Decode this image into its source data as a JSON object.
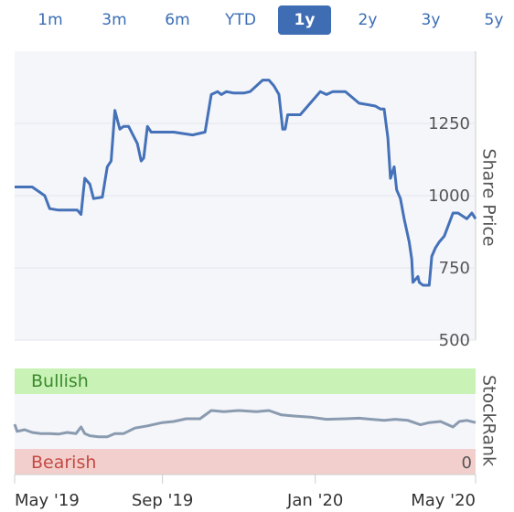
{
  "range_tabs": [
    {
      "label": "1m",
      "active": false
    },
    {
      "label": "3m",
      "active": false
    },
    {
      "label": "6m",
      "active": false
    },
    {
      "label": "YTD",
      "active": false
    },
    {
      "label": "1y",
      "active": true
    },
    {
      "label": "2y",
      "active": false
    },
    {
      "label": "3y",
      "active": false
    },
    {
      "label": "5y",
      "active": false
    }
  ],
  "colors": {
    "accent": "#3f6db4",
    "line": "#4471b8",
    "bullish_zone": "#c9f2b6",
    "bearish_zone": "#f2cfcc",
    "bullish_text": "#3a8a2c",
    "bearish_text": "#c44a44",
    "stockrank_line": "#8a9bb0"
  },
  "chart_data": [
    {
      "type": "line",
      "title": "",
      "ylabel": "Share Price",
      "ylim": [
        500,
        1500
      ],
      "yticks": [
        500,
        750,
        1000,
        1250
      ],
      "x_tick_labels": [
        "May '19",
        "Sep '19",
        "Jan '20",
        "May '20"
      ],
      "grid": true,
      "series": [
        {
          "x": [
            "2019-05-06",
            "2019-05-20",
            "2019-05-30",
            "2019-06-03",
            "2019-06-10",
            "2019-06-25",
            "2019-06-28",
            "2019-07-01",
            "2019-07-05",
            "2019-07-08",
            "2019-07-15",
            "2019-07-19",
            "2019-07-22",
            "2019-07-25",
            "2019-07-29",
            "2019-08-01",
            "2019-08-05",
            "2019-08-12",
            "2019-08-15",
            "2019-08-17",
            "2019-08-20",
            "2019-08-23",
            "2019-08-27",
            "2019-09-01",
            "2019-09-10",
            "2019-09-25",
            "2019-10-05",
            "2019-10-10",
            "2019-10-15",
            "2019-10-18",
            "2019-10-22",
            "2019-10-28",
            "2019-11-01",
            "2019-11-05",
            "2019-11-10",
            "2019-11-20",
            "2019-11-25",
            "2019-11-29",
            "2019-12-03",
            "2019-12-06",
            "2019-12-08",
            "2019-12-10",
            "2019-12-16",
            "2019-12-20",
            "2019-12-28",
            "2020-01-05",
            "2020-01-10",
            "2020-01-15",
            "2020-01-25",
            "2020-02-05",
            "2020-02-12",
            "2020-02-18",
            "2020-02-22",
            "2020-02-25",
            "2020-02-28",
            "2020-03-01",
            "2020-03-04",
            "2020-03-06",
            "2020-03-09",
            "2020-03-12",
            "2020-03-16",
            "2020-03-18",
            "2020-03-19",
            "2020-03-23",
            "2020-03-24",
            "2020-03-27",
            "2020-04-01",
            "2020-04-03",
            "2020-04-06",
            "2020-04-09",
            "2020-04-13",
            "2020-04-20",
            "2020-04-24",
            "2020-05-01",
            "2020-05-05",
            "2020-05-08"
          ],
          "y": [
            1030,
            1030,
            1000,
            955,
            950,
            950,
            935,
            1060,
            1040,
            990,
            995,
            1100,
            1120,
            1295,
            1230,
            1240,
            1240,
            1180,
            1120,
            1130,
            1240,
            1220,
            1220,
            1220,
            1220,
            1210,
            1220,
            1350,
            1360,
            1350,
            1360,
            1355,
            1355,
            1355,
            1360,
            1400,
            1400,
            1380,
            1350,
            1230,
            1230,
            1280,
            1280,
            1280,
            1320,
            1360,
            1350,
            1360,
            1360,
            1320,
            1315,
            1310,
            1300,
            1300,
            1200,
            1060,
            1100,
            1020,
            990,
            920,
            840,
            780,
            700,
            720,
            700,
            690,
            690,
            790,
            820,
            840,
            860,
            940,
            940,
            920,
            940,
            920
          ]
        }
      ]
    },
    {
      "type": "line",
      "ylabel": "StockRank",
      "ylim": [
        0,
        100
      ],
      "zones": {
        "upper": "Bullish",
        "lower": "Bearish"
      },
      "zero_label": "0",
      "series": [
        {
          "x": [
            "2019-05-06",
            "2019-05-08",
            "2019-05-14",
            "2019-05-20",
            "2019-05-27",
            "2019-06-03",
            "2019-06-10",
            "2019-06-17",
            "2019-06-24",
            "2019-06-28",
            "2019-07-01",
            "2019-07-05",
            "2019-07-12",
            "2019-07-19",
            "2019-07-25",
            "2019-08-01",
            "2019-08-10",
            "2019-08-20",
            "2019-09-01",
            "2019-09-10",
            "2019-09-20",
            "2019-10-01",
            "2019-10-10",
            "2019-10-20",
            "2019-11-01",
            "2019-11-15",
            "2019-11-25",
            "2019-12-05",
            "2019-12-15",
            "2019-12-28",
            "2020-01-10",
            "2020-01-25",
            "2020-02-05",
            "2020-02-15",
            "2020-02-25",
            "2020-03-05",
            "2020-03-15",
            "2020-03-20",
            "2020-03-25",
            "2020-04-01",
            "2020-04-10",
            "2020-04-20",
            "2020-04-25",
            "2020-05-01",
            "2020-05-08"
          ],
          "y": [
            45,
            32,
            35,
            30,
            28,
            28,
            27,
            30,
            28,
            40,
            28,
            24,
            22,
            22,
            28,
            28,
            38,
            42,
            48,
            50,
            55,
            55,
            70,
            68,
            70,
            68,
            70,
            62,
            60,
            58,
            54,
            55,
            56,
            54,
            52,
            54,
            52,
            48,
            44,
            48,
            50,
            40,
            50,
            52,
            48
          ]
        }
      ]
    }
  ]
}
